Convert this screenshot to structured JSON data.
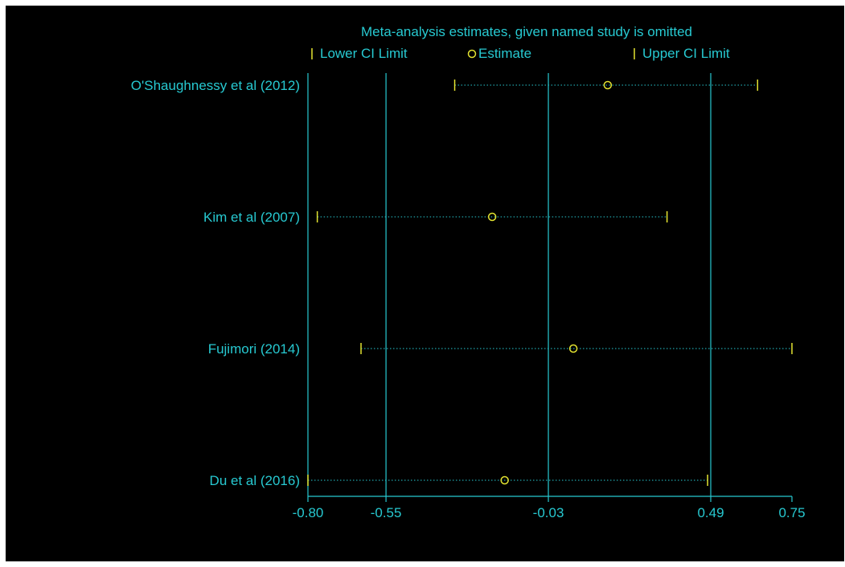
{
  "chart_data": {
    "type": "forest",
    "title": "Meta-analysis estimates, given named study is omitted",
    "legend": [
      {
        "key": "lower",
        "label": "Lower CI Limit"
      },
      {
        "key": "estimate",
        "label": "Estimate"
      },
      {
        "key": "upper",
        "label": "Upper CI Limit"
      }
    ],
    "studies": [
      {
        "label": "O'Shaughnessy et al (2012)",
        "lower": -0.33,
        "estimate": 0.16,
        "upper": 0.64
      },
      {
        "label": "Kim et al (2007)",
        "lower": -0.77,
        "estimate": -0.21,
        "upper": 0.35
      },
      {
        "label": "Fujimori (2014)",
        "lower": -0.63,
        "estimate": 0.05,
        "upper": 0.75
      },
      {
        "label": "Du et al (2016)",
        "lower": -0.8,
        "estimate": -0.17,
        "upper": 0.48
      }
    ],
    "xaxis": {
      "ticks": [
        -0.8,
        -0.55,
        -0.03,
        0.49,
        0.75
      ],
      "tick_labels": [
        "-0.80",
        "-0.55",
        "-0.03",
        "0.49",
        "0.75"
      ],
      "range": [
        -0.8,
        0.75
      ]
    },
    "reference_lines": [
      -0.55,
      -0.03,
      0.49
    ],
    "colors": {
      "background": "#000000",
      "axis": "#27c9d1",
      "text": "#27c9d1",
      "marker": "#e3e330",
      "ci_line": "#27c9d1"
    }
  }
}
